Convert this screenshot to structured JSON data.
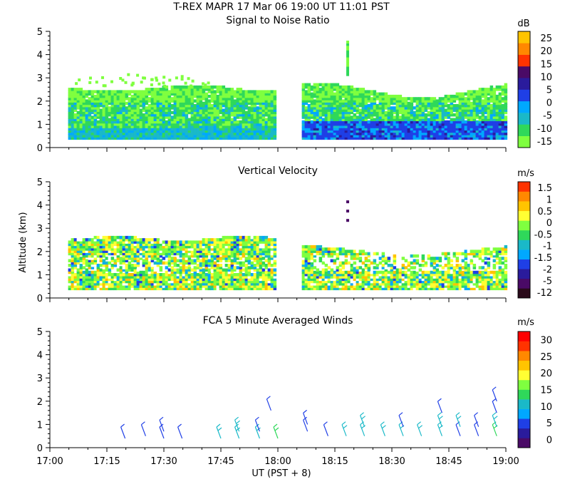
{
  "header": {
    "title": "T-REX   MAPR 17 Mar 06   19:00 UT   11:01   PST"
  },
  "x_axis": {
    "label": "UT  (PST + 8)",
    "ticks": [
      "17:00",
      "17:15",
      "17:30",
      "17:45",
      "18:00",
      "18:15",
      "18:30",
      "18:45",
      "19:00"
    ]
  },
  "y_axis_label": "Altitude (km)",
  "chart_data": [
    {
      "type": "heatmap",
      "title": "Signal to Noise Ratio",
      "xlabel": "UT  (PST + 8)",
      "ylabel": "Altitude (km)",
      "xlim": [
        17.0,
        19.0
      ],
      "ylim": [
        0,
        5
      ],
      "yticks": [
        "0",
        "1",
        "2",
        "3",
        "4",
        "5"
      ],
      "colorbar": {
        "unit": "dB",
        "labels": [
          "-15",
          "-10",
          "-5",
          "0",
          "5",
          "10",
          "15",
          "20",
          "25"
        ],
        "colors": [
          "#7fff3f",
          "#2fd85a",
          "#1ab9c8",
          "#00a8ff",
          "#1f3fe6",
          "#2a1b9c",
          "#4a0a66",
          "#ff3300",
          "#ff8800",
          "#ffc400"
        ]
      },
      "data_gap": [
        17.99,
        18.1
      ],
      "features": [
        {
          "x": [
            17.08,
            17.99
          ],
          "y": [
            0.3,
            2.5
          ],
          "value_db": -12
        },
        {
          "x": [
            18.1,
            19.0
          ],
          "y": [
            0.3,
            2.7
          ],
          "value_db": -12
        },
        {
          "x": [
            18.1,
            19.0
          ],
          "y": [
            0.3,
            1.1
          ],
          "value_db": 2
        }
      ]
    },
    {
      "type": "heatmap",
      "title": "Vertical Velocity",
      "xlabel": "UT  (PST + 8)",
      "ylabel": "Altitude (km)",
      "xlim": [
        17.0,
        19.0
      ],
      "ylim": [
        0,
        5
      ],
      "yticks": [
        "0",
        "1",
        "2",
        "3",
        "4",
        "5"
      ],
      "colorbar": {
        "unit": "m/s",
        "labels": [
          "-12",
          "-5",
          "-2",
          "-1.5",
          "-1",
          "-0.5",
          "0",
          "0.5",
          "1",
          "1.5"
        ],
        "colors": [
          "#2a0a1a",
          "#4a0a66",
          "#2a1b9c",
          "#1f3fe6",
          "#00a8ff",
          "#1ab9c8",
          "#2fd85a",
          "#7fff3f",
          "#ffff33",
          "#ffc400",
          "#ff8800",
          "#ff3300"
        ]
      },
      "data_gap": [
        17.99,
        18.1
      ],
      "features": [
        {
          "x": [
            17.08,
            17.99
          ],
          "y": [
            0.3,
            2.6
          ],
          "value_ms": 0
        },
        {
          "x": [
            18.1,
            19.0
          ],
          "y": [
            0.3,
            2.1
          ],
          "value_ms": -0.5
        }
      ]
    },
    {
      "type": "scatter",
      "title": "FCA 5 Minute Averaged Winds",
      "xlabel": "UT  (PST + 8)",
      "ylabel": "Altitude (km)",
      "xlim": [
        17.0,
        19.0
      ],
      "ylim": [
        0,
        5
      ],
      "yticks": [
        "0",
        "1",
        "2",
        "3",
        "4",
        "5"
      ],
      "colorbar": {
        "unit": "m/s",
        "labels": [
          "0",
          "5",
          "10",
          "15",
          "20",
          "25",
          "30"
        ],
        "colors": [
          "#4a0a66",
          "#2a1b9c",
          "#1f3fe6",
          "#00a8ff",
          "#1ab9c8",
          "#2fd85a",
          "#7fff3f",
          "#ffff33",
          "#ffc400",
          "#ff8800",
          "#ff3300",
          "#ff0000"
        ]
      },
      "barbs": [
        {
          "t": 17.33,
          "alt": 0.4,
          "speed": 5
        },
        {
          "t": 17.42,
          "alt": 0.5,
          "speed": 5
        },
        {
          "t": 17.5,
          "alt": 0.4,
          "speed": 5
        },
        {
          "t": 17.5,
          "alt": 0.7,
          "speed": 5
        },
        {
          "t": 17.58,
          "alt": 0.4,
          "speed": 5
        },
        {
          "t": 17.75,
          "alt": 0.4,
          "speed": 10
        },
        {
          "t": 17.83,
          "alt": 0.4,
          "speed": 10
        },
        {
          "t": 17.83,
          "alt": 0.7,
          "speed": 10
        },
        {
          "t": 17.92,
          "alt": 0.4,
          "speed": 10
        },
        {
          "t": 17.92,
          "alt": 0.7,
          "speed": 5
        },
        {
          "t": 17.97,
          "alt": 1.6,
          "speed": 5
        },
        {
          "t": 18.0,
          "alt": 0.4,
          "speed": 15
        },
        {
          "t": 18.13,
          "alt": 0.7,
          "speed": 5
        },
        {
          "t": 18.13,
          "alt": 1.0,
          "speed": 5
        },
        {
          "t": 18.22,
          "alt": 0.5,
          "speed": 5
        },
        {
          "t": 18.3,
          "alt": 0.5,
          "speed": 10
        },
        {
          "t": 18.38,
          "alt": 0.5,
          "speed": 10
        },
        {
          "t": 18.38,
          "alt": 0.9,
          "speed": 10
        },
        {
          "t": 18.47,
          "alt": 0.5,
          "speed": 10
        },
        {
          "t": 18.55,
          "alt": 0.5,
          "speed": 10
        },
        {
          "t": 18.55,
          "alt": 0.9,
          "speed": 5
        },
        {
          "t": 18.63,
          "alt": 0.5,
          "speed": 10
        },
        {
          "t": 18.72,
          "alt": 0.5,
          "speed": 10
        },
        {
          "t": 18.72,
          "alt": 0.9,
          "speed": 10
        },
        {
          "t": 18.72,
          "alt": 1.5,
          "speed": 5
        },
        {
          "t": 18.8,
          "alt": 0.5,
          "speed": 5
        },
        {
          "t": 18.8,
          "alt": 0.9,
          "speed": 10
        },
        {
          "t": 18.88,
          "alt": 0.5,
          "speed": 5
        },
        {
          "t": 18.88,
          "alt": 0.9,
          "speed": 5
        },
        {
          "t": 18.96,
          "alt": 0.5,
          "speed": 15
        },
        {
          "t": 18.96,
          "alt": 0.9,
          "speed": 10
        },
        {
          "t": 18.96,
          "alt": 1.5,
          "speed": 5
        },
        {
          "t": 18.96,
          "alt": 2.0,
          "speed": 5
        }
      ]
    }
  ]
}
